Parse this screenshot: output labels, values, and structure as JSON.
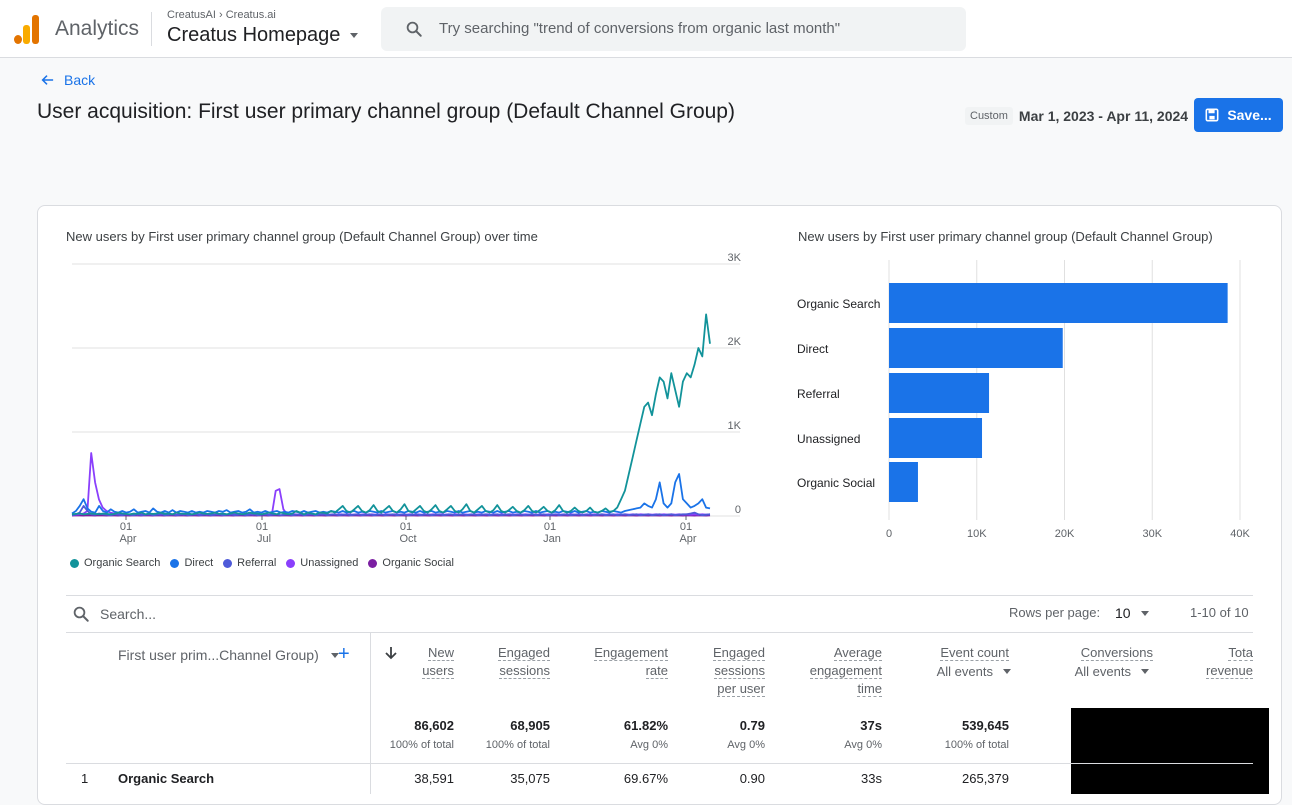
{
  "app": {
    "brand": "Analytics",
    "breadcrumb_account": "CreatusAI",
    "breadcrumb_property": "Creatus.ai",
    "property": "Creatus Homepage"
  },
  "search": {
    "placeholder": "Try searching \"trend of conversions from organic last month\""
  },
  "page": {
    "back": "Back",
    "title": "User acquisition: First user primary channel group (Default Channel Group)",
    "date_tag": "Custom",
    "date_range": "Mar 1, 2023 - Apr 11, 2024",
    "save": "Save..."
  },
  "colors": {
    "accent": "#1a73e8"
  },
  "chart_data": [
    {
      "type": "line",
      "title": "New users by First user primary channel group (Default Channel Group) over time",
      "x_ticks": [
        "01 Apr",
        "01 Jul",
        "01 Oct",
        "01 Jan",
        "01 Apr"
      ],
      "x_tick_day": "01",
      "x_tick_months": [
        "Apr",
        "Jul",
        "Oct",
        "Jan",
        "Apr"
      ],
      "y_ticks": [
        "0",
        "1K",
        "2K",
        "3K"
      ],
      "ylim": [
        0,
        3000
      ],
      "axis_side": "right",
      "grid": true,
      "series": [
        {
          "name": "Organic Search",
          "color": "#12939a",
          "values": [
            20,
            25,
            30,
            20,
            25,
            30,
            25,
            20,
            30,
            25,
            20,
            25,
            40,
            30,
            25,
            20,
            30,
            25,
            40,
            20,
            30,
            25,
            30,
            40,
            25,
            30,
            20,
            40,
            30,
            25,
            30,
            20,
            30,
            40,
            30,
            25,
            30,
            40,
            25,
            30,
            20,
            30,
            40,
            30,
            20,
            30,
            40,
            30,
            30,
            20,
            30,
            40,
            30,
            20,
            40,
            30,
            20,
            30,
            60,
            40,
            20,
            40,
            30,
            20,
            40,
            40,
            30,
            60,
            40,
            80,
            120,
            60,
            40,
            80,
            120,
            60,
            40,
            70,
            130,
            60,
            40,
            80,
            120,
            60,
            40,
            80,
            140,
            60,
            40,
            80,
            120,
            60,
            40,
            80,
            130,
            60,
            40,
            80,
            120,
            60,
            40,
            80,
            140,
            60,
            40,
            80,
            120,
            60,
            40,
            70,
            130,
            60,
            40,
            70,
            110,
            60,
            40,
            70,
            120,
            60,
            40,
            70,
            110,
            60,
            40,
            70,
            130,
            60,
            40,
            60,
            100,
            60,
            40,
            60,
            100,
            50,
            40,
            60,
            90,
            50,
            60,
            100,
            200,
            300,
            500,
            700,
            900,
            1100,
            1300,
            1350,
            1200,
            1450,
            1650,
            1600,
            1400,
            1700,
            1500,
            1300,
            1600,
            1700,
            1650,
            1800,
            2000,
            1900,
            2400,
            2050
          ]
        },
        {
          "name": "Direct",
          "color": "#1a73e8",
          "values": [
            30,
            60,
            120,
            200,
            90,
            50,
            40,
            120,
            60,
            40,
            80,
            50,
            40,
            60,
            40,
            50,
            80,
            40,
            50,
            60,
            40,
            90,
            50,
            40,
            60,
            40,
            70,
            40,
            60,
            50,
            40,
            60,
            40,
            50,
            40,
            60,
            50,
            40,
            60,
            50,
            70,
            40,
            50,
            60,
            40,
            50,
            80,
            40,
            50,
            40,
            60,
            40,
            50,
            60,
            40,
            50,
            40,
            60,
            50,
            40,
            60,
            40,
            50,
            60,
            40,
            50,
            40,
            60,
            50,
            40,
            60,
            40,
            50,
            60,
            40,
            50,
            40,
            60,
            50,
            40,
            60,
            40,
            50,
            60,
            40,
            50,
            40,
            60,
            50,
            40,
            60,
            40,
            50,
            60,
            40,
            50,
            40,
            60,
            50,
            40,
            60,
            40,
            50,
            60,
            40,
            50,
            40,
            60,
            50,
            40,
            60,
            40,
            50,
            60,
            40,
            50,
            40,
            60,
            50,
            40,
            60,
            40,
            50,
            60,
            40,
            50,
            40,
            60,
            50,
            40,
            60,
            40,
            50,
            60,
            40,
            50,
            40,
            60,
            50,
            40,
            60,
            50,
            40,
            60,
            70,
            80,
            90,
            100,
            150,
            120,
            100,
            200,
            400,
            150,
            100,
            150,
            400,
            500,
            200,
            150,
            100,
            120,
            150,
            200,
            100,
            90
          ]
        },
        {
          "name": "Referral",
          "color": "#4e5ad9",
          "values": [
            10,
            20,
            40,
            120,
            60,
            20,
            15,
            30,
            20,
            15,
            10,
            20,
            15,
            10,
            20,
            15,
            10,
            20,
            10,
            15,
            20,
            10,
            15,
            20,
            10,
            15,
            20,
            10,
            15,
            20,
            10,
            15,
            20,
            10,
            15,
            20,
            10,
            15,
            20,
            10,
            15,
            20,
            10,
            15,
            20,
            10,
            15,
            20,
            10,
            15,
            20,
            10,
            15,
            20,
            10,
            15,
            20,
            10,
            15,
            20,
            10,
            15,
            20,
            10,
            15,
            20,
            10,
            15,
            20,
            10,
            15,
            20,
            10,
            15,
            20,
            10,
            15,
            20,
            10,
            15,
            20,
            10,
            15,
            20,
            10,
            15,
            20,
            10,
            15,
            20,
            10,
            15,
            20,
            10,
            15,
            20,
            10,
            15,
            20,
            10,
            15,
            20,
            10,
            15,
            20,
            10,
            15,
            20,
            10,
            15,
            20,
            10,
            15,
            20,
            10,
            15,
            20,
            10,
            15,
            20,
            10,
            15,
            20,
            10,
            15,
            20,
            10,
            15,
            20,
            10,
            15,
            20,
            10,
            15,
            20,
            10,
            15,
            20,
            10,
            15,
            20,
            10,
            15,
            20,
            10,
            15,
            20,
            10,
            15,
            20,
            10,
            15,
            20,
            10,
            15,
            20,
            10,
            15,
            20,
            20,
            30,
            40,
            20,
            10,
            15,
            20
          ]
        },
        {
          "name": "Unassigned",
          "color": "#8a3ffc",
          "values": [
            10,
            15,
            20,
            30,
            60,
            750,
            400,
            200,
            100,
            60,
            40,
            30,
            20,
            30,
            20,
            15,
            20,
            15,
            20,
            15,
            20,
            15,
            20,
            15,
            20,
            15,
            20,
            15,
            20,
            15,
            20,
            15,
            20,
            15,
            20,
            15,
            20,
            15,
            20,
            15,
            20,
            15,
            20,
            15,
            20,
            15,
            20,
            15,
            20,
            15,
            20,
            15,
            20,
            300,
            320,
            80,
            20,
            15,
            20,
            15,
            20,
            15,
            20,
            15,
            20,
            15,
            20,
            15,
            20,
            15,
            20,
            15,
            20,
            15,
            20,
            15,
            20,
            15,
            20,
            15,
            20,
            15,
            20,
            15,
            20,
            15,
            20,
            15,
            20,
            15,
            20,
            15,
            20,
            15,
            20,
            15,
            20,
            15,
            20,
            15,
            20,
            15,
            20,
            15,
            20,
            15,
            20,
            15,
            20,
            15,
            20,
            15,
            20,
            15,
            20,
            15,
            20,
            15,
            20,
            15,
            20,
            15,
            20,
            15,
            20,
            15,
            20,
            15,
            20,
            15,
            20,
            15,
            20,
            15,
            20,
            15,
            20,
            15,
            20,
            15,
            20,
            15,
            20,
            15,
            20,
            15,
            20,
            15,
            20,
            15,
            20,
            15,
            20,
            15,
            20,
            15,
            20,
            15,
            20,
            15,
            20,
            15,
            20,
            15,
            20,
            15,
            20
          ]
        },
        {
          "name": "Organic Social",
          "color": "#7b1fa2",
          "values": [
            5,
            8,
            6,
            5,
            8,
            6,
            5,
            8,
            6,
            5,
            8,
            6,
            5,
            8,
            6,
            5,
            8,
            6,
            5,
            8,
            6,
            5,
            8,
            6,
            5,
            8,
            6,
            5,
            8,
            6,
            5,
            8,
            6,
            5,
            8,
            6,
            5,
            8,
            6,
            5,
            8,
            6,
            5,
            8,
            6,
            5,
            8,
            6,
            5,
            8,
            6,
            5,
            8,
            6,
            5,
            8,
            6,
            5,
            8,
            6,
            5,
            8,
            6,
            5,
            8,
            6,
            5,
            8,
            6,
            5,
            8,
            6,
            5,
            8,
            6,
            5,
            8,
            6,
            5,
            8,
            6,
            5,
            8,
            6,
            5,
            8,
            6,
            5,
            8,
            6,
            5,
            8,
            6,
            5,
            8,
            6,
            5,
            8,
            6,
            5,
            8,
            6,
            5,
            8,
            6,
            5,
            8,
            6,
            5,
            8,
            6,
            5,
            8,
            6,
            5,
            8,
            6,
            5,
            8,
            6,
            5,
            8,
            6,
            5,
            8,
            6,
            5,
            8,
            6,
            5,
            8,
            6,
            5,
            8,
            6,
            5,
            8,
            6,
            5,
            8,
            6,
            5,
            8,
            6,
            5,
            8,
            6,
            5,
            8,
            6,
            5,
            8,
            6,
            5,
            8,
            6,
            5,
            8,
            6,
            5,
            8,
            6,
            5,
            8,
            6,
            5,
            8
          ]
        }
      ]
    },
    {
      "type": "bar",
      "orientation": "horizontal",
      "title": "New users by First user primary channel group (Default Channel Group)",
      "categories": [
        "Organic Search",
        "Direct",
        "Referral",
        "Unassigned",
        "Organic Social"
      ],
      "values": [
        38591,
        19800,
        11400,
        10600,
        3300
      ],
      "x_ticks": [
        "0",
        "10K",
        "20K",
        "30K",
        "40K"
      ],
      "xlim": [
        0,
        40000
      ],
      "color": "#1a73e8",
      "grid": true
    }
  ],
  "table": {
    "search_placeholder": "Search...",
    "rows_per_page_label": "Rows per page:",
    "rows_per_page": "10",
    "range": "1-10 of 10",
    "dimension_header": "First user prim...Channel Group)",
    "add": "+",
    "columns": [
      {
        "lines": [
          "New",
          "users"
        ],
        "total": "86,602",
        "sub": "100% of total"
      },
      {
        "lines": [
          "Engaged",
          "sessions"
        ],
        "total": "68,905",
        "sub": "100% of total"
      },
      {
        "lines": [
          "Engagement",
          "rate"
        ],
        "total": "61.82%",
        "sub": "Avg 0%"
      },
      {
        "lines": [
          "Engaged",
          "sessions",
          "per user"
        ],
        "total": "0.79",
        "sub": "Avg 0%"
      },
      {
        "lines": [
          "Average",
          "engagement",
          "time"
        ],
        "total": "37s",
        "sub": "Avg 0%"
      },
      {
        "lines": [
          "Event count"
        ],
        "selector": "All events",
        "total": "539,645",
        "sub": "100% of total"
      },
      {
        "lines": [
          "Conversions"
        ],
        "selector": "All events"
      },
      {
        "lines": [
          "Tota",
          "revenue"
        ]
      }
    ],
    "rows": [
      {
        "num": "1",
        "name": "Organic Search",
        "cells": [
          "38,591",
          "35,075",
          "69.67%",
          "0.90",
          "33s",
          "265,379"
        ]
      }
    ]
  }
}
